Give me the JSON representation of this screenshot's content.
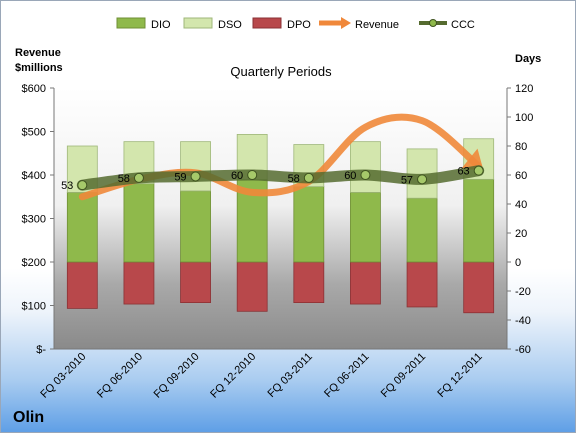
{
  "company": "Olin",
  "chart_data": {
    "type": "bar",
    "title": "Quarterly Periods",
    "ylabel": "Revenue\n$millions",
    "y2label": "Days",
    "ylim": [
      0,
      600
    ],
    "y2lim": [
      -60,
      120
    ],
    "y_ticks": [
      "$-",
      "$100",
      "$200",
      "$300",
      "$400",
      "$500",
      "$600"
    ],
    "y2_ticks": [
      "-60",
      "-40",
      "-20",
      "0",
      "20",
      "40",
      "60",
      "80",
      "100",
      "120"
    ],
    "categories": [
      "FQ 03-2010",
      "FQ 06-2010",
      "FQ 09-2010",
      "FQ 12-2010",
      "FQ 03-2011",
      "FQ 06-2011",
      "FQ 09-2011",
      "FQ 12-2011"
    ],
    "legend": [
      "DIO",
      "DSO",
      "DPO",
      "Revenue",
      "CCC"
    ],
    "colors": {
      "DIO": "#8fb94b",
      "DSO": "#d3e6ad",
      "DPO": "#b8484b",
      "Revenue": "#f0883a",
      "CCC": "#556b2f"
    },
    "series": [
      {
        "name": "DIO",
        "axis": "days",
        "values": [
          48,
          54,
          49,
          57,
          52,
          48,
          44,
          57
        ]
      },
      {
        "name": "DSO",
        "axis": "days",
        "values": [
          32,
          29,
          34,
          31,
          29,
          35,
          34,
          28
        ]
      },
      {
        "name": "DPO",
        "axis": "days",
        "values": [
          -32,
          -29,
          -28,
          -34,
          -28,
          -29,
          -31,
          -35
        ]
      },
      {
        "name": "Revenue",
        "axis": "revenue",
        "values": [
          350,
          390,
          405,
          360,
          385,
          510,
          525,
          420
        ]
      },
      {
        "name": "CCC",
        "axis": "days",
        "values": [
          53,
          58,
          59,
          60,
          58,
          60,
          57,
          63
        ]
      }
    ],
    "ccc_labels": [
      "53",
      "58",
      "59",
      "60",
      "58",
      "60",
      "57",
      "63"
    ],
    "legend_placement": "top",
    "grid": false
  }
}
